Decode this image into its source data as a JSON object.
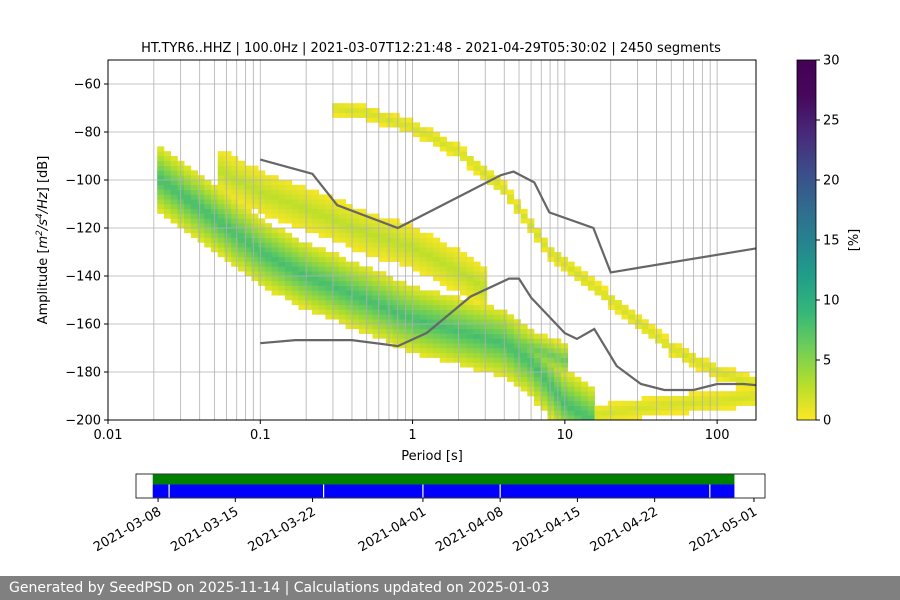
{
  "chart_data": {
    "type": "heatmap",
    "title": "HT.TYR6..HHZ | 100.0Hz | 2021-03-07T12:21:48 - 2021-04-29T05:30:02 | 2450 segments",
    "xlabel": "Period [s]",
    "ylabel_pre": "Amplitude [",
    "ylabel_m": "m",
    "ylabel_exp1": "2",
    "ylabel_s": "/s",
    "ylabel_exp2": "4",
    "ylabel_hz": "/Hz",
    "ylabel_post": "] [dB]",
    "x_scale": "log",
    "xlim": [
      0.01,
      180
    ],
    "ylim": [
      -200,
      -50
    ],
    "x_ticks": [
      {
        "value": 0.01,
        "label": "0.01"
      },
      {
        "value": 0.1,
        "label": "0.1"
      },
      {
        "value": 1,
        "label": "1"
      },
      {
        "value": 10,
        "label": "10"
      },
      {
        "value": 100,
        "label": "100"
      }
    ],
    "y_ticks": [
      {
        "value": -60,
        "label": "−60"
      },
      {
        "value": -80,
        "label": "−80"
      },
      {
        "value": -100,
        "label": "−100"
      },
      {
        "value": -120,
        "label": "−120"
      },
      {
        "value": -140,
        "label": "−140"
      },
      {
        "value": -160,
        "label": "−160"
      },
      {
        "value": -180,
        "label": "−180"
      },
      {
        "value": -200,
        "label": "−200"
      }
    ],
    "grid": true,
    "colorbar": {
      "label": "[%]",
      "range": [
        0,
        30
      ],
      "colormap": "viridis_r",
      "ticks": [
        {
          "value": 0,
          "label": "0"
        },
        {
          "value": 5,
          "label": "5"
        },
        {
          "value": 10,
          "label": "10"
        },
        {
          "value": 15,
          "label": "15"
        },
        {
          "value": 20,
          "label": "20"
        },
        {
          "value": 25,
          "label": "25"
        },
        {
          "value": 30,
          "label": "30"
        }
      ]
    },
    "density_bands": [
      {
        "points": [
          [
            0.02,
            -98
          ],
          [
            0.05,
            -116
          ],
          [
            0.1,
            -130
          ],
          [
            0.2,
            -140
          ],
          [
            0.5,
            -150
          ],
          [
            1,
            -158
          ],
          [
            2,
            -163
          ],
          [
            4,
            -168
          ],
          [
            6,
            -176
          ],
          [
            10,
            -193
          ],
          [
            15,
            -200
          ]
        ],
        "width_db": 28,
        "peak_pct": 9
      },
      {
        "points": [
          [
            0.05,
            -95
          ],
          [
            0.1,
            -105
          ],
          [
            0.2,
            -112
          ],
          [
            0.5,
            -122
          ],
          [
            1,
            -128
          ],
          [
            2,
            -138
          ],
          [
            3,
            -145
          ]
        ],
        "width_db": 18,
        "peak_pct": 3
      },
      {
        "points": [
          [
            0.3,
            -70
          ],
          [
            0.5,
            -72
          ],
          [
            1,
            -78
          ],
          [
            2,
            -88
          ],
          [
            4,
            -104
          ],
          [
            8,
            -130
          ],
          [
            20,
            -150
          ],
          [
            50,
            -170
          ],
          [
            100,
            -180
          ],
          [
            180,
            -185
          ]
        ],
        "width_db": 6,
        "peak_pct": 2
      },
      {
        "points": [
          [
            1,
            -163
          ],
          [
            2,
            -160
          ],
          [
            3,
            -162
          ],
          [
            5,
            -168
          ],
          [
            10,
            -175
          ]
        ],
        "width_db": 14,
        "peak_pct": 7
      },
      {
        "points": [
          [
            15,
            -198
          ],
          [
            40,
            -194
          ],
          [
            100,
            -192
          ],
          [
            180,
            -190
          ]
        ],
        "width_db": 8,
        "peak_pct": 2
      }
    ],
    "noise_models": [
      {
        "name": "high",
        "points": [
          [
            0.1,
            -91.5
          ],
          [
            0.22,
            -97.4
          ],
          [
            0.32,
            -110.5
          ],
          [
            0.8,
            -120
          ],
          [
            3.8,
            -98
          ],
          [
            4.6,
            -96.5
          ],
          [
            6.3,
            -101
          ],
          [
            7.9,
            -113.5
          ],
          [
            15.4,
            -120
          ],
          [
            20,
            -138.5
          ],
          [
            180,
            -128.5
          ]
        ]
      },
      {
        "name": "low",
        "points": [
          [
            0.1,
            -168
          ],
          [
            0.17,
            -166.7
          ],
          [
            0.4,
            -166.7
          ],
          [
            0.8,
            -169.2
          ],
          [
            1.24,
            -163.7
          ],
          [
            2.4,
            -148.6
          ],
          [
            4.3,
            -141.1
          ],
          [
            5,
            -141.1
          ],
          [
            6,
            -149
          ],
          [
            10,
            -163.8
          ],
          [
            12,
            -166.2
          ],
          [
            15.6,
            -162.1
          ],
          [
            21.9,
            -177.5
          ],
          [
            31.6,
            -185
          ],
          [
            45,
            -187.5
          ],
          [
            70,
            -187.5
          ],
          [
            100,
            -185
          ],
          [
            150,
            -185
          ],
          [
            180,
            -185.5
          ]
        ]
      }
    ],
    "time_axis": {
      "range": [
        "2021-03-06",
        "2021-05-02"
      ],
      "data_span": [
        "2021-03-07T12:21:48",
        "2021-04-29T05:30:02"
      ],
      "gaps": [
        "2021-03-09",
        "2021-03-23",
        "2021-04-01",
        "2021-04-08",
        "2021-04-27"
      ],
      "colors": {
        "top": "#008000",
        "bottom": "#0000ff"
      },
      "ticks": [
        {
          "value": "2021-03-08",
          "label": "2021-03-08"
        },
        {
          "value": "2021-03-15",
          "label": "2021-03-15"
        },
        {
          "value": "2021-03-22",
          "label": "2021-03-22"
        },
        {
          "value": "2021-04-01",
          "label": "2021-04-01"
        },
        {
          "value": "2021-04-08",
          "label": "2021-04-08"
        },
        {
          "value": "2021-04-15",
          "label": "2021-04-15"
        },
        {
          "value": "2021-04-22",
          "label": "2021-04-22"
        },
        {
          "value": "2021-05-01",
          "label": "2021-05-01"
        }
      ]
    }
  },
  "footer": {
    "text": "Generated by SeedPSD on 2025-11-14 | Calculations updated on 2025-01-03"
  }
}
